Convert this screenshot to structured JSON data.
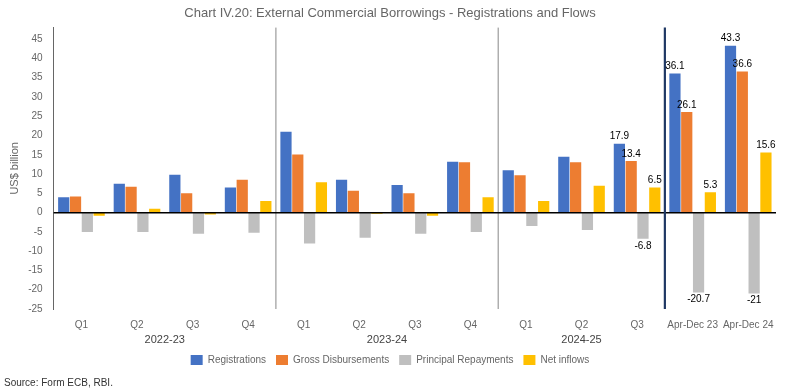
{
  "chart_data": {
    "type": "bar",
    "title": "Chart IV.20: External Commercial Borrowings - Registrations and Flows",
    "ylabel": "US$ billion",
    "categories": [
      "Q1",
      "Q2",
      "Q3",
      "Q4",
      "Q1",
      "Q2",
      "Q3",
      "Q4",
      "Q1",
      "Q2",
      "Q3",
      "Apr-Dec 23",
      "Apr-Dec 24"
    ],
    "series": [
      {
        "name": "Registrations",
        "color": "#4472C4",
        "values": [
          4.0,
          7.5,
          9.8,
          6.5,
          21.0,
          8.5,
          7.2,
          13.2,
          11.0,
          14.5,
          17.9,
          36.1,
          43.3
        ],
        "value_labels": [
          null,
          null,
          null,
          null,
          null,
          null,
          null,
          null,
          null,
          null,
          "17.9",
          "36.1",
          "43.3"
        ]
      },
      {
        "name": "Gross Disbursements",
        "color": "#ED7D31",
        "values": [
          4.2,
          6.7,
          5.0,
          8.5,
          15.1,
          5.7,
          5.0,
          13.1,
          9.7,
          13.1,
          13.4,
          26.1,
          36.6
        ],
        "value_labels": [
          null,
          null,
          null,
          null,
          null,
          null,
          null,
          null,
          null,
          null,
          "13.4",
          "26.1",
          "36.6"
        ]
      },
      {
        "name": "Principal Repayments",
        "color": "#BFBFBF",
        "values": [
          -5.0,
          -5.0,
          -5.5,
          -5.2,
          -8.0,
          -6.5,
          -5.5,
          -5.0,
          -3.5,
          -4.5,
          -6.8,
          -20.7,
          -21.0
        ],
        "value_labels": [
          null,
          null,
          null,
          null,
          null,
          null,
          null,
          null,
          null,
          null,
          "-6.8",
          "-20.7",
          "-21"
        ]
      },
      {
        "name": "Net inflows",
        "color": "#FFC000",
        "values": [
          -0.8,
          1.0,
          -0.5,
          3.0,
          7.9,
          -0.3,
          -0.8,
          4.0,
          3.0,
          7.0,
          6.5,
          5.3,
          15.6
        ],
        "value_labels": [
          null,
          null,
          null,
          null,
          null,
          null,
          null,
          null,
          null,
          null,
          "6.5",
          "5.3",
          "15.6"
        ]
      }
    ],
    "ylim": [
      -25,
      48
    ],
    "yticks": [
      -25,
      -20,
      -15,
      -10,
      -5,
      0,
      5,
      10,
      15,
      20,
      25,
      30,
      35,
      40,
      45
    ],
    "grid": false,
    "legend": "bottom",
    "data_labels": true,
    "annotations": [
      {
        "text": "2022-23",
        "from": 0,
        "to": 3
      },
      {
        "text": "2023-24",
        "from": 4,
        "to": 7
      },
      {
        "text": "2024-25",
        "from": 8,
        "to": 10
      }
    ],
    "source": "Source: Form ECB, RBI."
  }
}
